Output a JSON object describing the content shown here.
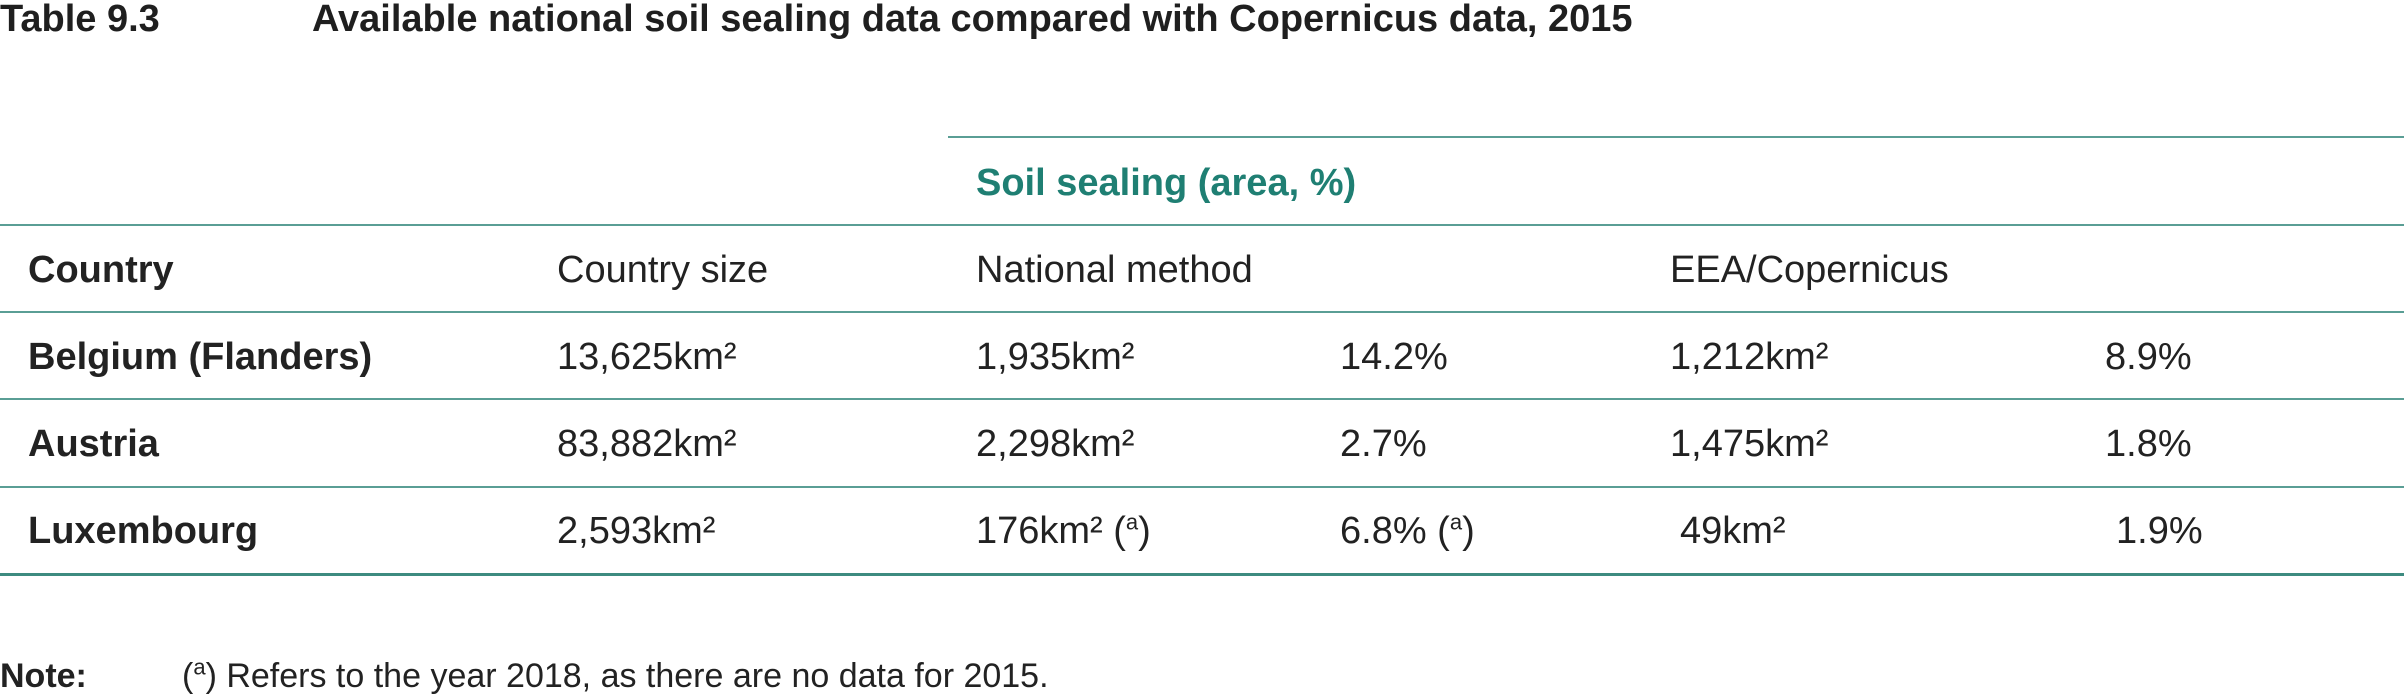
{
  "table_number": "Table 9.3",
  "title": "Available national soil sealing data compared with Copernicus data, 2015",
  "group_header": "Soil sealing (area, %)",
  "columns": {
    "country": "Country",
    "country_size": "Country size",
    "national_method": "National method",
    "eea_copernicus": "EEA/Copernicus"
  },
  "rows": [
    {
      "country": "Belgium (Flanders)",
      "size": "13,625km²",
      "nat_area": "1,935km²",
      "nat_pct": "14.2%",
      "eea_area": "1,212km²",
      "eea_pct": "8.9%"
    },
    {
      "country": "Austria",
      "size": "83,882km²",
      "nat_area": "2,298km²",
      "nat_pct": "2.7%",
      "eea_area": "1,475km²",
      "eea_pct": "1.8%"
    },
    {
      "country": "Luxembourg",
      "size": "2,593km²",
      "nat_area": "176km² (",
      "nat_area_sup": "a",
      "nat_area_end": ")",
      "nat_pct": "6.8% (",
      "nat_pct_sup": "a",
      "nat_pct_end": ")",
      "eea_area": "49km²",
      "eea_pct": "1.9%"
    }
  ],
  "note": {
    "label": "Note:",
    "open": "(",
    "sup": "a",
    "text": ") Refers to the year 2018, as there are no data for 2015."
  },
  "colors": {
    "accent": "#1f7f73",
    "rule": "#5a9e95"
  }
}
